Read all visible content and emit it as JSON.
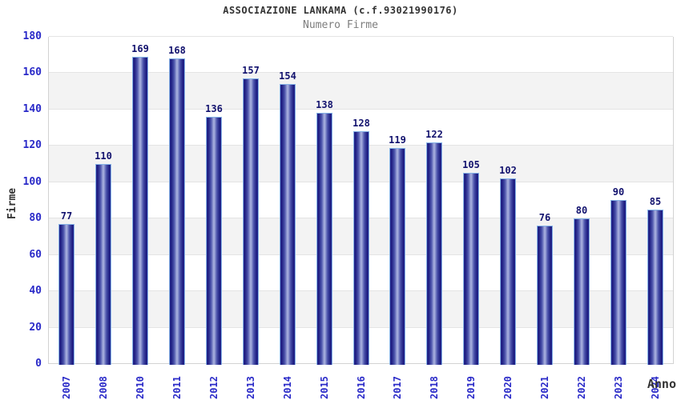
{
  "header": {
    "title": "ASSOCIAZIONE LANKAMA (c.f.93021990176)",
    "subtitle": "Numero Firme"
  },
  "chart_data": {
    "type": "bar",
    "title": "ASSOCIAZIONE LANKAMA (c.f.93021990176)",
    "subtitle": "Numero Firme",
    "categories": [
      "2007",
      "2008",
      "2010",
      "2011",
      "2012",
      "2013",
      "2014",
      "2015",
      "2016",
      "2017",
      "2018",
      "2019",
      "2020",
      "2021",
      "2022",
      "2023",
      "2024"
    ],
    "values": [
      77,
      110,
      169,
      168,
      136,
      157,
      154,
      138,
      128,
      119,
      122,
      105,
      102,
      76,
      80,
      90,
      85
    ],
    "xlabel": "Anno",
    "ylabel": "Firme",
    "ylim": [
      0,
      180
    ],
    "ytick_step": 20,
    "yticks": [
      0,
      20,
      40,
      60,
      80,
      100,
      120,
      140,
      160,
      180
    ],
    "grid": "horizontal-bands-alternating",
    "legend": "none",
    "colors": {
      "bar_edge": "#1e1e82",
      "bar_center": "#aab0e0",
      "bar_outline": "#85b2e6",
      "axis_tick_label": "#2a2ac8",
      "value_label": "#12126e",
      "band_gray": "#f3f3f3",
      "band_white": "#ffffff",
      "plot_border": "#d2d2d2",
      "title": "#333333",
      "subtitle": "#7d7d7d"
    }
  }
}
